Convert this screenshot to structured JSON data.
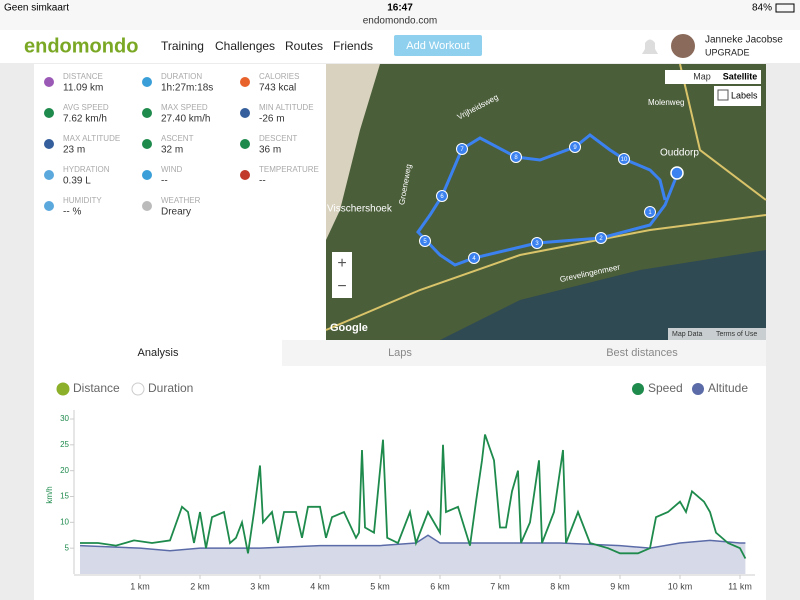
{
  "status_bar": {
    "carrier": "Geen simkaart",
    "time": "16:47",
    "url": "endomondo.com",
    "battery": "84%"
  },
  "nav": {
    "logo": "endomondo",
    "links": [
      "Training",
      "Challenges",
      "Routes",
      "Friends"
    ],
    "button": "Add Workout",
    "user_name": "Janneke Jacobse",
    "user_status": "UPGRADE"
  },
  "stats": [
    {
      "label": "DISTANCE",
      "value": "11.09 km"
    },
    {
      "label": "DURATION",
      "value": "1h:27m:18s"
    },
    {
      "label": "CALORIES",
      "value": "743 kcal"
    },
    {
      "label": "AVG SPEED",
      "value": "7.62 km/h"
    },
    {
      "label": "MAX SPEED",
      "value": "27.40 km/h"
    },
    {
      "label": "MIN ALTITUDE",
      "value": "-26 m"
    },
    {
      "label": "MAX ALTITUDE",
      "value": "23 m"
    },
    {
      "label": "ASCENT",
      "value": "32 m"
    },
    {
      "label": "DESCENT",
      "value": "36 m"
    },
    {
      "label": "HYDRATION",
      "value": "0.39 L"
    },
    {
      "label": "WIND",
      "value": "--"
    },
    {
      "label": "TEMPERATURE",
      "value": "--"
    },
    {
      "label": "HUMIDITY",
      "value": "-- %"
    },
    {
      "label": "WEATHER",
      "value": "Dreary"
    }
  ],
  "map": {
    "map_button": "Map",
    "satellite_button": "Satellite",
    "labels_checkbox": "Labels",
    "zoom_in": "+",
    "zoom_out": "−",
    "places": [
      "Vrijheidsweg",
      "Molenweg",
      "Ouddorp",
      "Visschershoek",
      "Groeneweg",
      "Grevelingenmeer"
    ],
    "markers": [
      "1",
      "2",
      "3",
      "4",
      "5",
      "6",
      "7",
      "8",
      "9",
      "10"
    ],
    "google": "Google",
    "map_data": "Map Data",
    "terms": "Terms of Use"
  },
  "tabs": [
    "Analysis",
    "Laps",
    "Best distances"
  ],
  "chart_toggles": [
    "Distance",
    "Duration"
  ],
  "chart_data": {
    "type": "line",
    "y_label": "km/h",
    "xlim": [
      0,
      11.25
    ],
    "ylim": [
      0,
      30
    ],
    "yticks": [
      5,
      10,
      15,
      20,
      25,
      30
    ],
    "xticks": [
      {
        "value": 1,
        "label": "1 km"
      },
      {
        "value": 2,
        "label": "2 km"
      },
      {
        "value": 3,
        "label": "3 km"
      },
      {
        "value": 4,
        "label": "4 km"
      },
      {
        "value": 5,
        "label": "5 km"
      },
      {
        "value": 6,
        "label": "6 km"
      },
      {
        "value": 7,
        "label": "7 km"
      },
      {
        "value": 8,
        "label": "8 km"
      },
      {
        "value": 9,
        "label": "9 km"
      },
      {
        "value": 10,
        "label": "10 km"
      },
      {
        "value": 11,
        "label": "11 km"
      }
    ],
    "series": [
      {
        "name": "Speed",
        "color": "#1e8a4c",
        "x": [
          0,
          0.3,
          0.6,
          0.9,
          1.2,
          1.5,
          1.7,
          1.8,
          1.9,
          2.0,
          2.1,
          2.2,
          2.4,
          2.5,
          2.6,
          2.7,
          2.8,
          2.9,
          3.0,
          3.05,
          3.2,
          3.3,
          3.4,
          3.6,
          3.7,
          3.8,
          4.0,
          4.1,
          4.2,
          4.4,
          4.6,
          4.65,
          4.7,
          4.75,
          4.9,
          5.05,
          5.12,
          5.3,
          5.5,
          5.6,
          5.8,
          6.0,
          6.05,
          6.1,
          6.3,
          6.5,
          6.6,
          6.7,
          6.75,
          6.9,
          7.0,
          7.1,
          7.2,
          7.3,
          7.35,
          7.5,
          7.65,
          7.7,
          7.9,
          8.05,
          8.1,
          8.3,
          8.5,
          8.8,
          9.0,
          9.3,
          9.5,
          9.6,
          9.8,
          10.0,
          10.1,
          10.2,
          10.4,
          10.5,
          10.6,
          10.8,
          11.0,
          11.09
        ],
        "values": [
          6,
          6,
          5.5,
          6.5,
          6,
          6.5,
          13,
          12,
          6,
          12,
          5,
          11,
          12,
          6,
          7,
          10,
          4,
          12,
          21,
          10,
          12,
          6,
          12,
          12,
          7,
          13,
          13,
          7,
          11,
          12,
          7,
          8,
          24,
          9,
          8,
          26,
          7,
          6,
          12,
          6,
          12,
          8,
          25,
          12,
          13,
          5.5,
          14,
          22,
          27,
          22,
          9,
          9,
          16,
          20,
          6,
          10,
          22,
          6,
          12,
          24,
          6,
          12,
          6,
          5,
          4,
          4,
          5,
          11,
          12,
          14,
          12,
          16,
          14,
          12,
          8,
          6,
          5,
          3
        ]
      },
      {
        "name": "Altitude",
        "color": "#5b6ba8",
        "fill": "#d6dae8",
        "x": [
          0,
          1,
          1.5,
          2,
          3,
          4,
          5,
          5.6,
          5.8,
          6,
          7,
          8,
          9,
          9.5,
          10,
          10.5,
          11,
          11.09
        ],
        "values": [
          5.5,
          5,
          4.5,
          5,
          5,
          5.5,
          5.5,
          6,
          7.5,
          6,
          6,
          6,
          5.5,
          5,
          6,
          6.5,
          6,
          6
        ]
      }
    ]
  }
}
